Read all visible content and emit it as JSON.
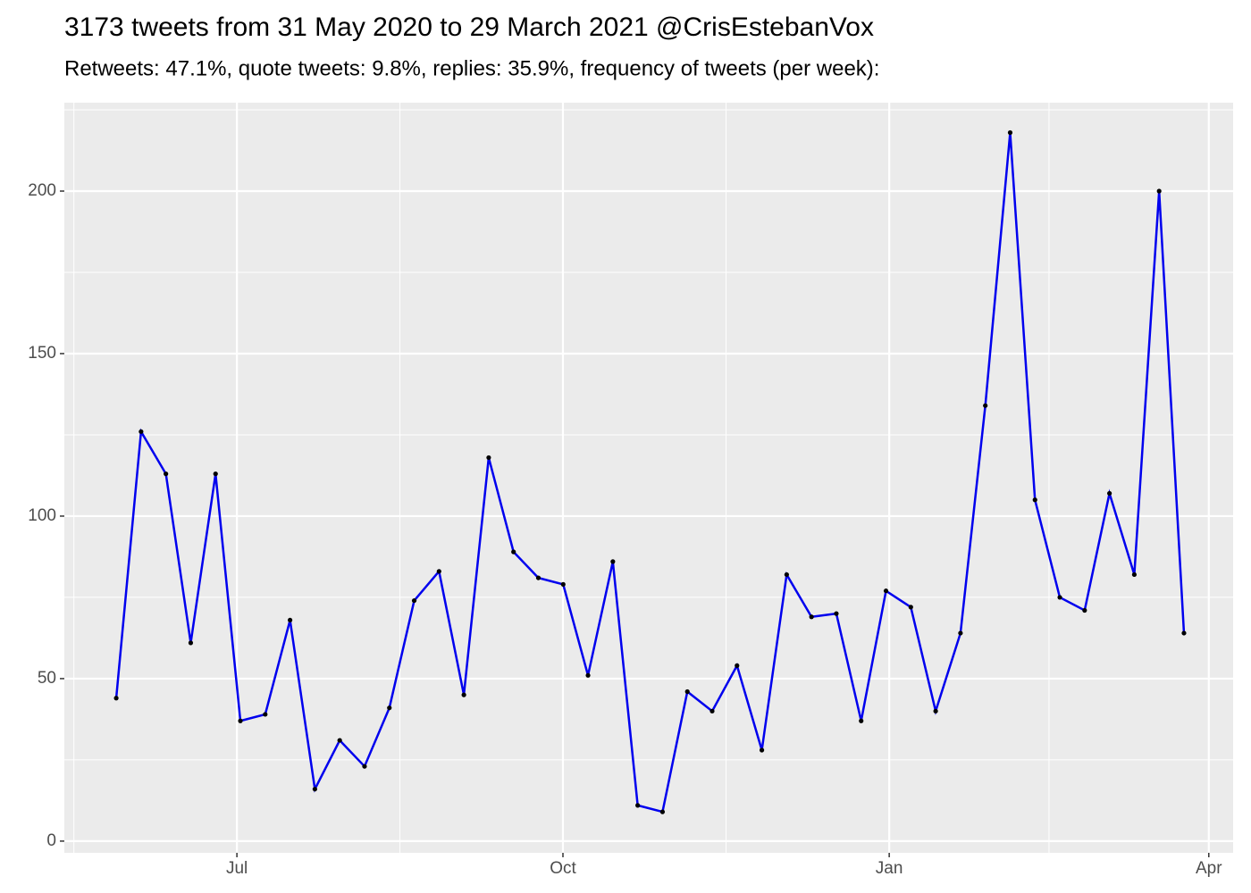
{
  "chart_data": {
    "type": "line",
    "title": "3173 tweets from 31 May 2020 to 29 March 2021 @CrisEstebanVox",
    "subtitle": "Retweets: 47.1%, quote tweets: 9.8%, replies: 35.9%, frequency of tweets (per week):",
    "categories": [
      null,
      null,
      null,
      null,
      null,
      null,
      null,
      null,
      null,
      null,
      null,
      null,
      null,
      null,
      null,
      null,
      null,
      null,
      null,
      null,
      null,
      null,
      null,
      null,
      null,
      null,
      null,
      null,
      null,
      null,
      null,
      null,
      null,
      null,
      null,
      null,
      null,
      null,
      null,
      null,
      null,
      null,
      null,
      null
    ],
    "values": [
      44,
      126,
      113,
      61,
      113,
      37,
      39,
      68,
      16,
      31,
      23,
      41,
      74,
      83,
      45,
      118,
      89,
      81,
      79,
      51,
      86,
      11,
      9,
      46,
      40,
      54,
      28,
      82,
      69,
      70,
      37,
      77,
      72,
      40,
      64,
      134,
      218,
      105,
      75,
      71,
      107,
      82,
      200,
      64
    ],
    "color": "#0000ee",
    "point_color": "#000000",
    "xlim": [
      -2.09,
      44.98
    ],
    "xticks": [
      {
        "value": 4.86,
        "label": "Jul"
      },
      {
        "value": 17.99,
        "label": "Oct"
      },
      {
        "value": 31.13,
        "label": "Jan"
      },
      {
        "value": 44.0,
        "label": "Apr"
      }
    ],
    "ylim": [
      -3.6,
      227.2
    ],
    "yticks": [
      0,
      50,
      100,
      150,
      200
    ],
    "grid": true
  }
}
